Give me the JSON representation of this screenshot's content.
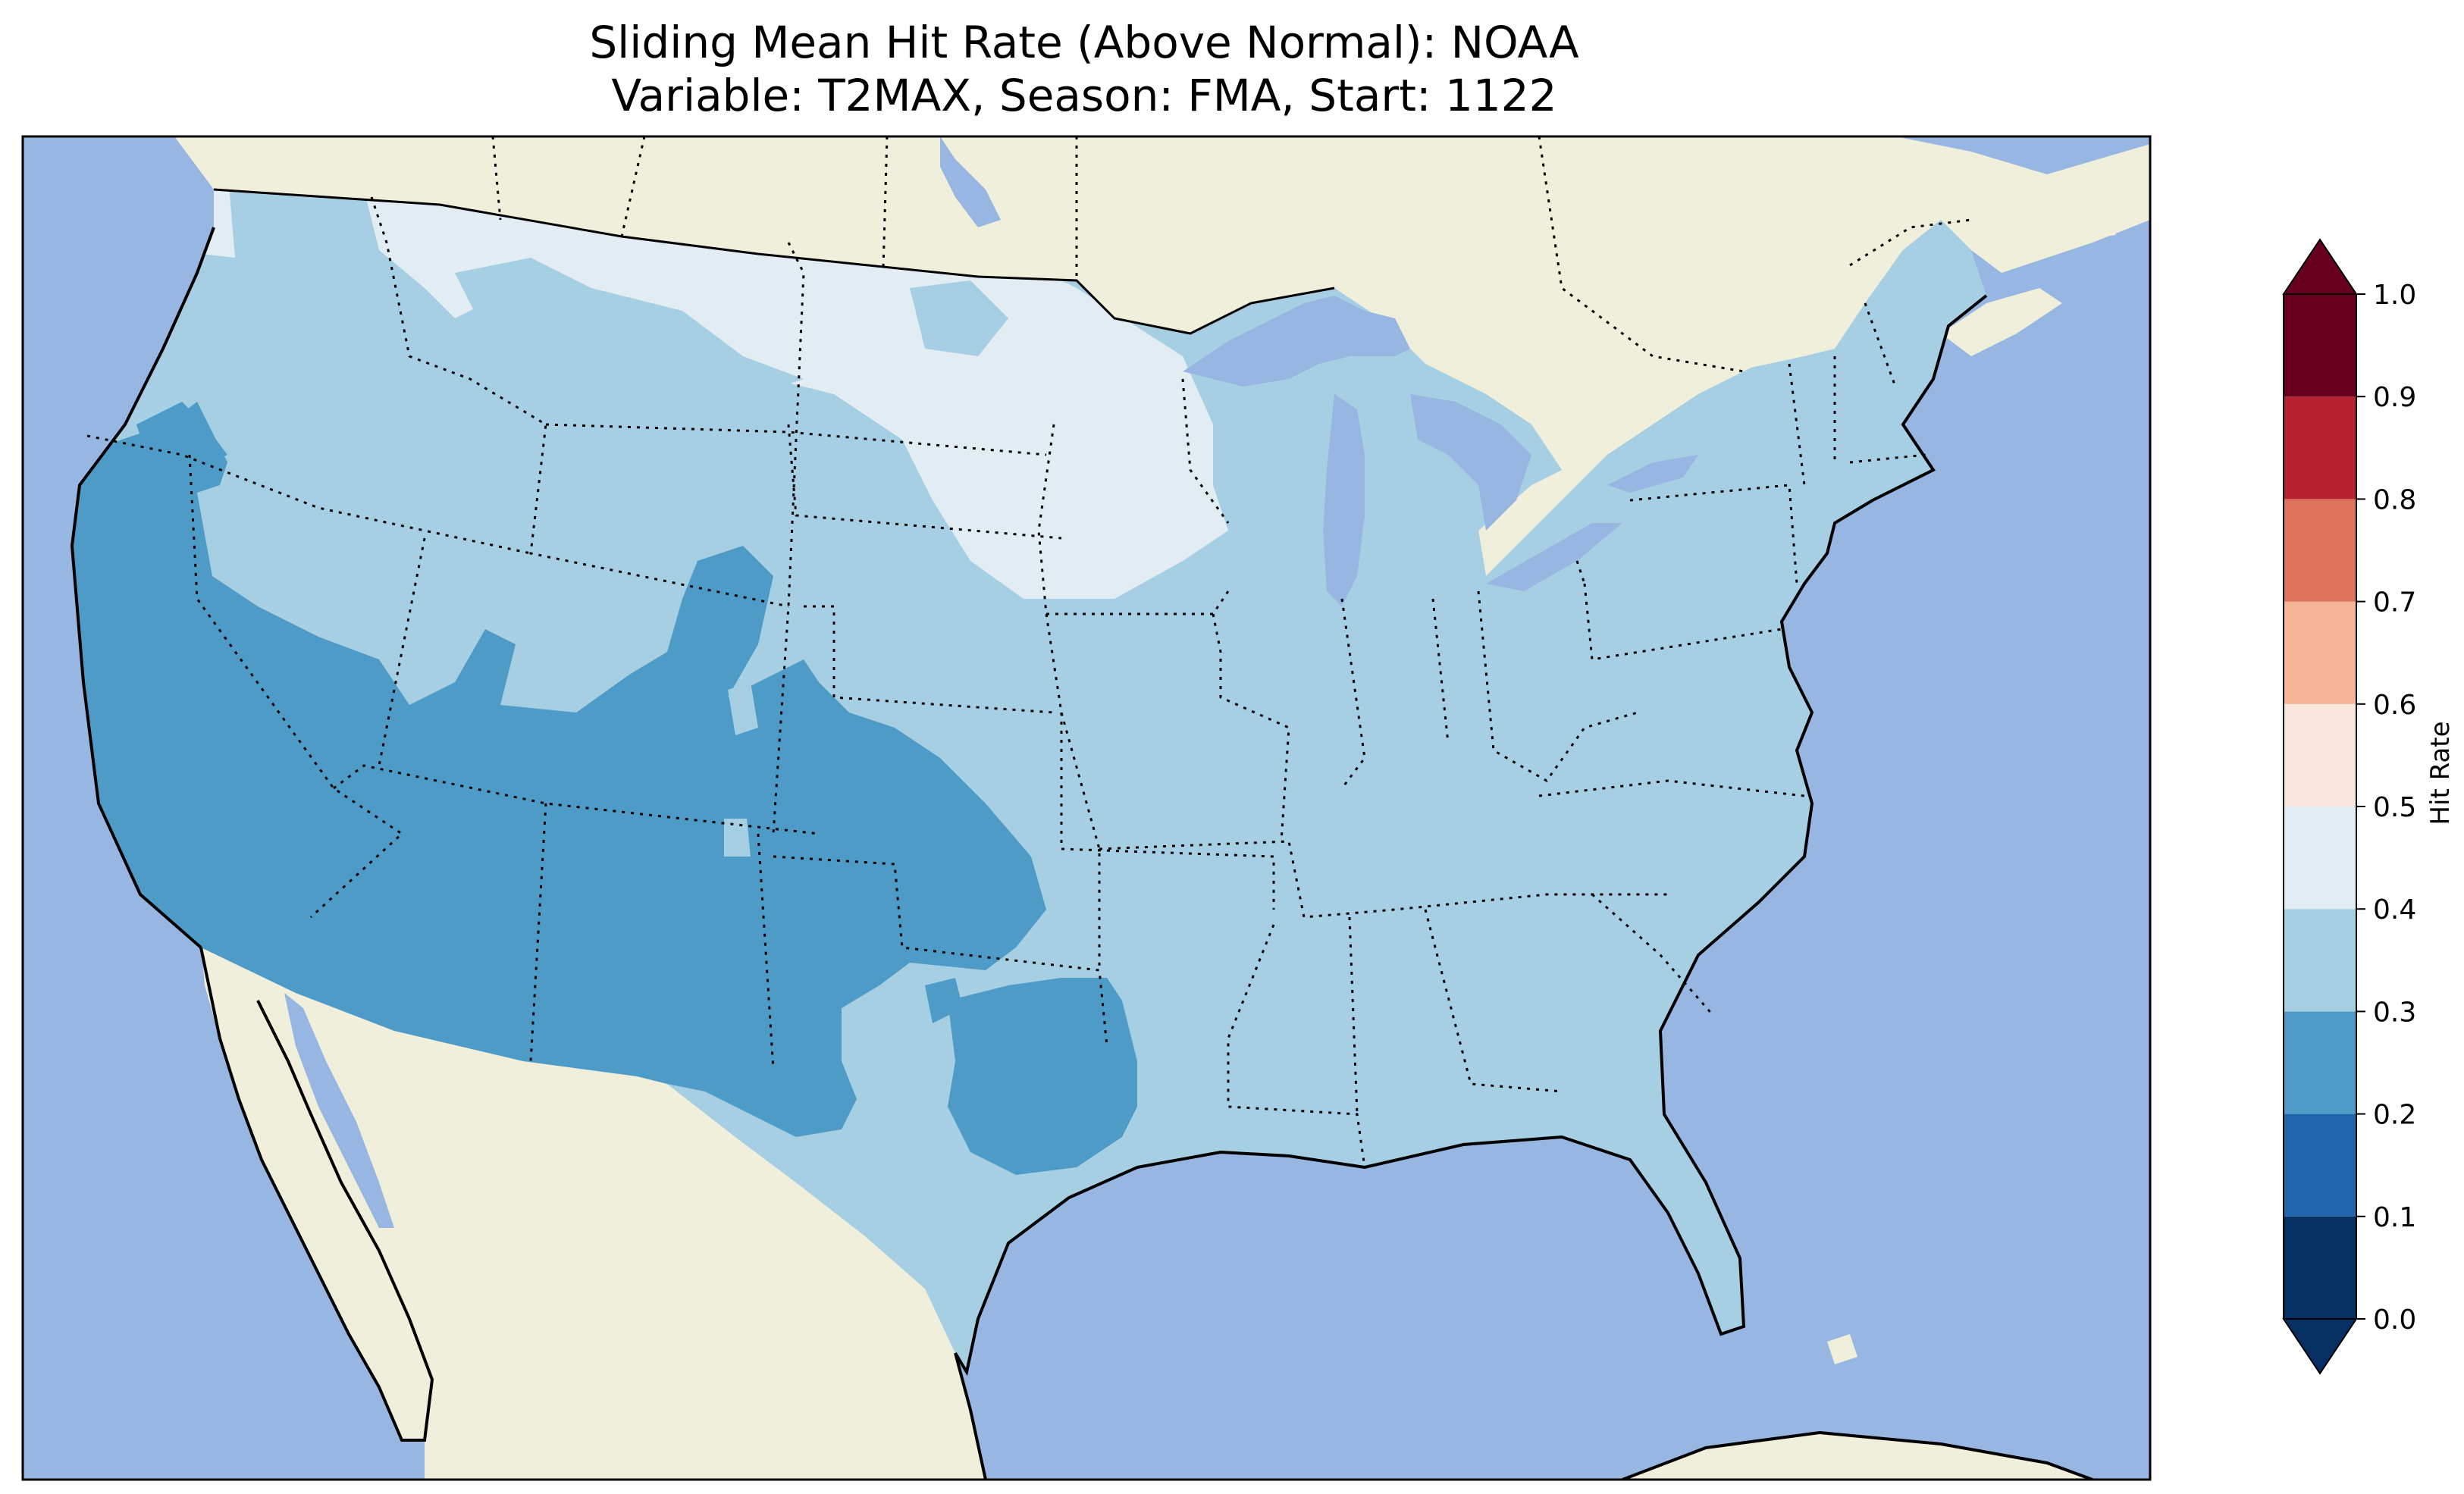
{
  "title": "Sliding Mean Hit Rate (Above Normal): NOAA",
  "subtitle": "Variable: T2MAX, Season: FMA, Start: 1122",
  "colors": {
    "ocean": "#97b6e1",
    "land": "#efefdb",
    "lakes": "#97b6e1",
    "border": "#000000"
  },
  "colorbar": {
    "label": "Hit Rate",
    "ticks": [
      "0.0",
      "0.1",
      "0.2",
      "0.3",
      "0.4",
      "0.5",
      "0.6",
      "0.7",
      "0.8",
      "0.9",
      "1.0"
    ],
    "bins": [
      {
        "from": 0.0,
        "to": 0.1,
        "color": "#053061"
      },
      {
        "from": 0.1,
        "to": 0.2,
        "color": "#2166ac"
      },
      {
        "from": 0.2,
        "to": 0.3,
        "color": "#4f9bc7"
      },
      {
        "from": 0.3,
        "to": 0.4,
        "color": "#a7cfe4"
      },
      {
        "from": 0.4,
        "to": 0.5,
        "color": "#e1ecf3"
      },
      {
        "from": 0.5,
        "to": 0.6,
        "color": "#f9e6dd"
      },
      {
        "from": 0.6,
        "to": 0.7,
        "color": "#f5b596"
      },
      {
        "from": 0.7,
        "to": 0.8,
        "color": "#de725c"
      },
      {
        "from": 0.8,
        "to": 0.9,
        "color": "#b72233"
      },
      {
        "from": 0.9,
        "to": 1.0,
        "color": "#67001f"
      }
    ],
    "under_color": "#053061",
    "over_color": "#67001f"
  },
  "map_regions": [
    {
      "name": "pacific-northwest",
      "hit_rate_bin": "0.3-0.4"
    },
    {
      "name": "northern-plains",
      "hit_rate_bin": "0.4-0.5"
    },
    {
      "name": "southwest",
      "hit_rate_bin": "0.2-0.3"
    },
    {
      "name": "south-central-texas",
      "hit_rate_bin": "0.2-0.3"
    },
    {
      "name": "eastern-us",
      "hit_rate_bin": "0.3-0.4"
    }
  ]
}
